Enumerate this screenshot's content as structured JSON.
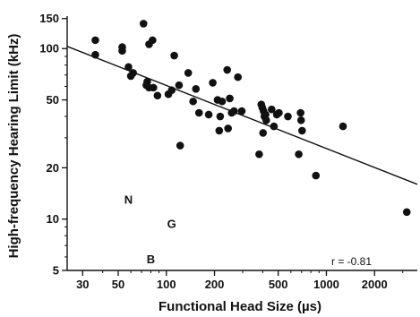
{
  "chart_data": {
    "type": "scatter",
    "title": "",
    "xlabel": "Functional Head Size (µs)",
    "ylabel": "High-frequency Hearing Limit (kHz)",
    "x_scale": "log",
    "y_scale": "log",
    "xlim": [
      24,
      3700
    ],
    "ylim": [
      5,
      155
    ],
    "x_ticks": [
      30,
      50,
      100,
      200,
      500,
      1000,
      2000
    ],
    "x_tick_labels": [
      "30",
      "50",
      "100",
      "200",
      "500",
      "1000",
      "2000"
    ],
    "y_ticks": [
      5,
      10,
      20,
      50,
      100,
      150
    ],
    "y_tick_labels": [
      "5",
      "10",
      "20",
      "50",
      "100",
      "150"
    ],
    "grid": false,
    "legend": "none",
    "point_color": "#111111",
    "series": [
      {
        "name": "",
        "points": [
          [
            36,
            112
          ],
          [
            36,
            92
          ],
          [
            53,
            102
          ],
          [
            53,
            97
          ],
          [
            58,
            78
          ],
          [
            60,
            69
          ],
          [
            62,
            72
          ],
          [
            72,
            140
          ],
          [
            75,
            61
          ],
          [
            76,
            64
          ],
          [
            78,
            106
          ],
          [
            82,
            112
          ],
          [
            78,
            59
          ],
          [
            83,
            59
          ],
          [
            88,
            53
          ],
          [
            103,
            54
          ],
          [
            108,
            57
          ],
          [
            112,
            91
          ],
          [
            120,
            61
          ],
          [
            122,
            27
          ],
          [
            137,
            72
          ],
          [
            147,
            49
          ],
          [
            153,
            58
          ],
          [
            160,
            42
          ],
          [
            184,
            41
          ],
          [
            195,
            63
          ],
          [
            209,
            50
          ],
          [
            214,
            33
          ],
          [
            217,
            40
          ],
          [
            223,
            49
          ],
          [
            240,
            75
          ],
          [
            243,
            34
          ],
          [
            249,
            51
          ],
          [
            256,
            42
          ],
          [
            265,
            43
          ],
          [
            280,
            68
          ],
          [
            296,
            43
          ],
          [
            380,
            24
          ],
          [
            392,
            47
          ],
          [
            398,
            45
          ],
          [
            402,
            32
          ],
          [
            405,
            43
          ],
          [
            410,
            40
          ],
          [
            417,
            41
          ],
          [
            421,
            38
          ],
          [
            455,
            44
          ],
          [
            470,
            35
          ],
          [
            490,
            41
          ],
          [
            505,
            42
          ],
          [
            575,
            40
          ],
          [
            672,
            24
          ],
          [
            690,
            42
          ],
          [
            695,
            38
          ],
          [
            705,
            33
          ],
          [
            860,
            18
          ],
          [
            1270,
            35
          ],
          [
            3180,
            11
          ]
        ]
      }
    ],
    "regression_line": {
      "x1": 24,
      "y1": 103,
      "x2": 3700,
      "y2": 16
    },
    "annotations": [
      {
        "text": "N",
        "x": 58,
        "y": 13
      },
      {
        "text": "G",
        "x": 108,
        "y": 9.4
      },
      {
        "text": "B",
        "x": 80,
        "y": 5.8
      }
    ],
    "correlation_label": "r = -0.81"
  }
}
